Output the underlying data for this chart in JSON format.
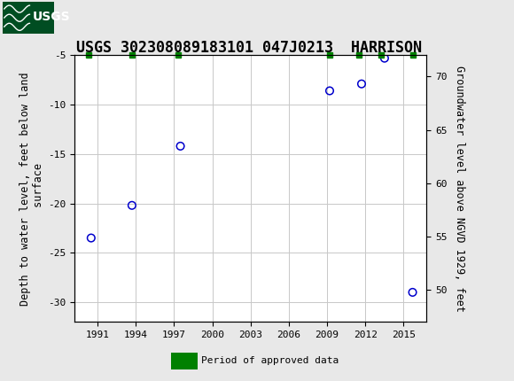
{
  "title": "USGS 302308089183101 047J0213  HARRISON",
  "ylabel_left": "Depth to water level, feet below land\n surface",
  "ylabel_right": "Groundwater level above NGVD 1929, feet",
  "data_points_x": [
    1990.5,
    1993.7,
    1997.5,
    2009.2,
    2011.7,
    2013.5,
    2015.7
  ],
  "data_points_y": [
    -23.5,
    -20.2,
    -14.2,
    -8.6,
    -7.9,
    -5.3,
    -29.0
  ],
  "approved_marker_x": [
    1990.3,
    1993.7,
    1997.3,
    2009.2,
    2011.5,
    2013.2,
    2015.7
  ],
  "ylim_left_top": -32,
  "ylim_left_bottom": -5,
  "ylim_right_top": 47,
  "ylim_right_bottom": 72,
  "yticks_left": [
    -30,
    -25,
    -20,
    -15,
    -10,
    -5
  ],
  "yticks_right": [
    50,
    55,
    60,
    65,
    70
  ],
  "xticks": [
    1991,
    1994,
    1997,
    2000,
    2003,
    2006,
    2009,
    2012,
    2015
  ],
  "xlim": [
    1989.2,
    2016.8
  ],
  "point_color": "#0000cc",
  "approved_color": "#008000",
  "header_bg_color": "#006633",
  "logo_bg_color": "#004d22",
  "background_color": "#e8e8e8",
  "plot_bg_color": "#ffffff",
  "grid_color": "#c8c8c8",
  "title_fontsize": 12,
  "axis_label_fontsize": 8.5,
  "tick_fontsize": 8,
  "legend_fontsize": 8
}
